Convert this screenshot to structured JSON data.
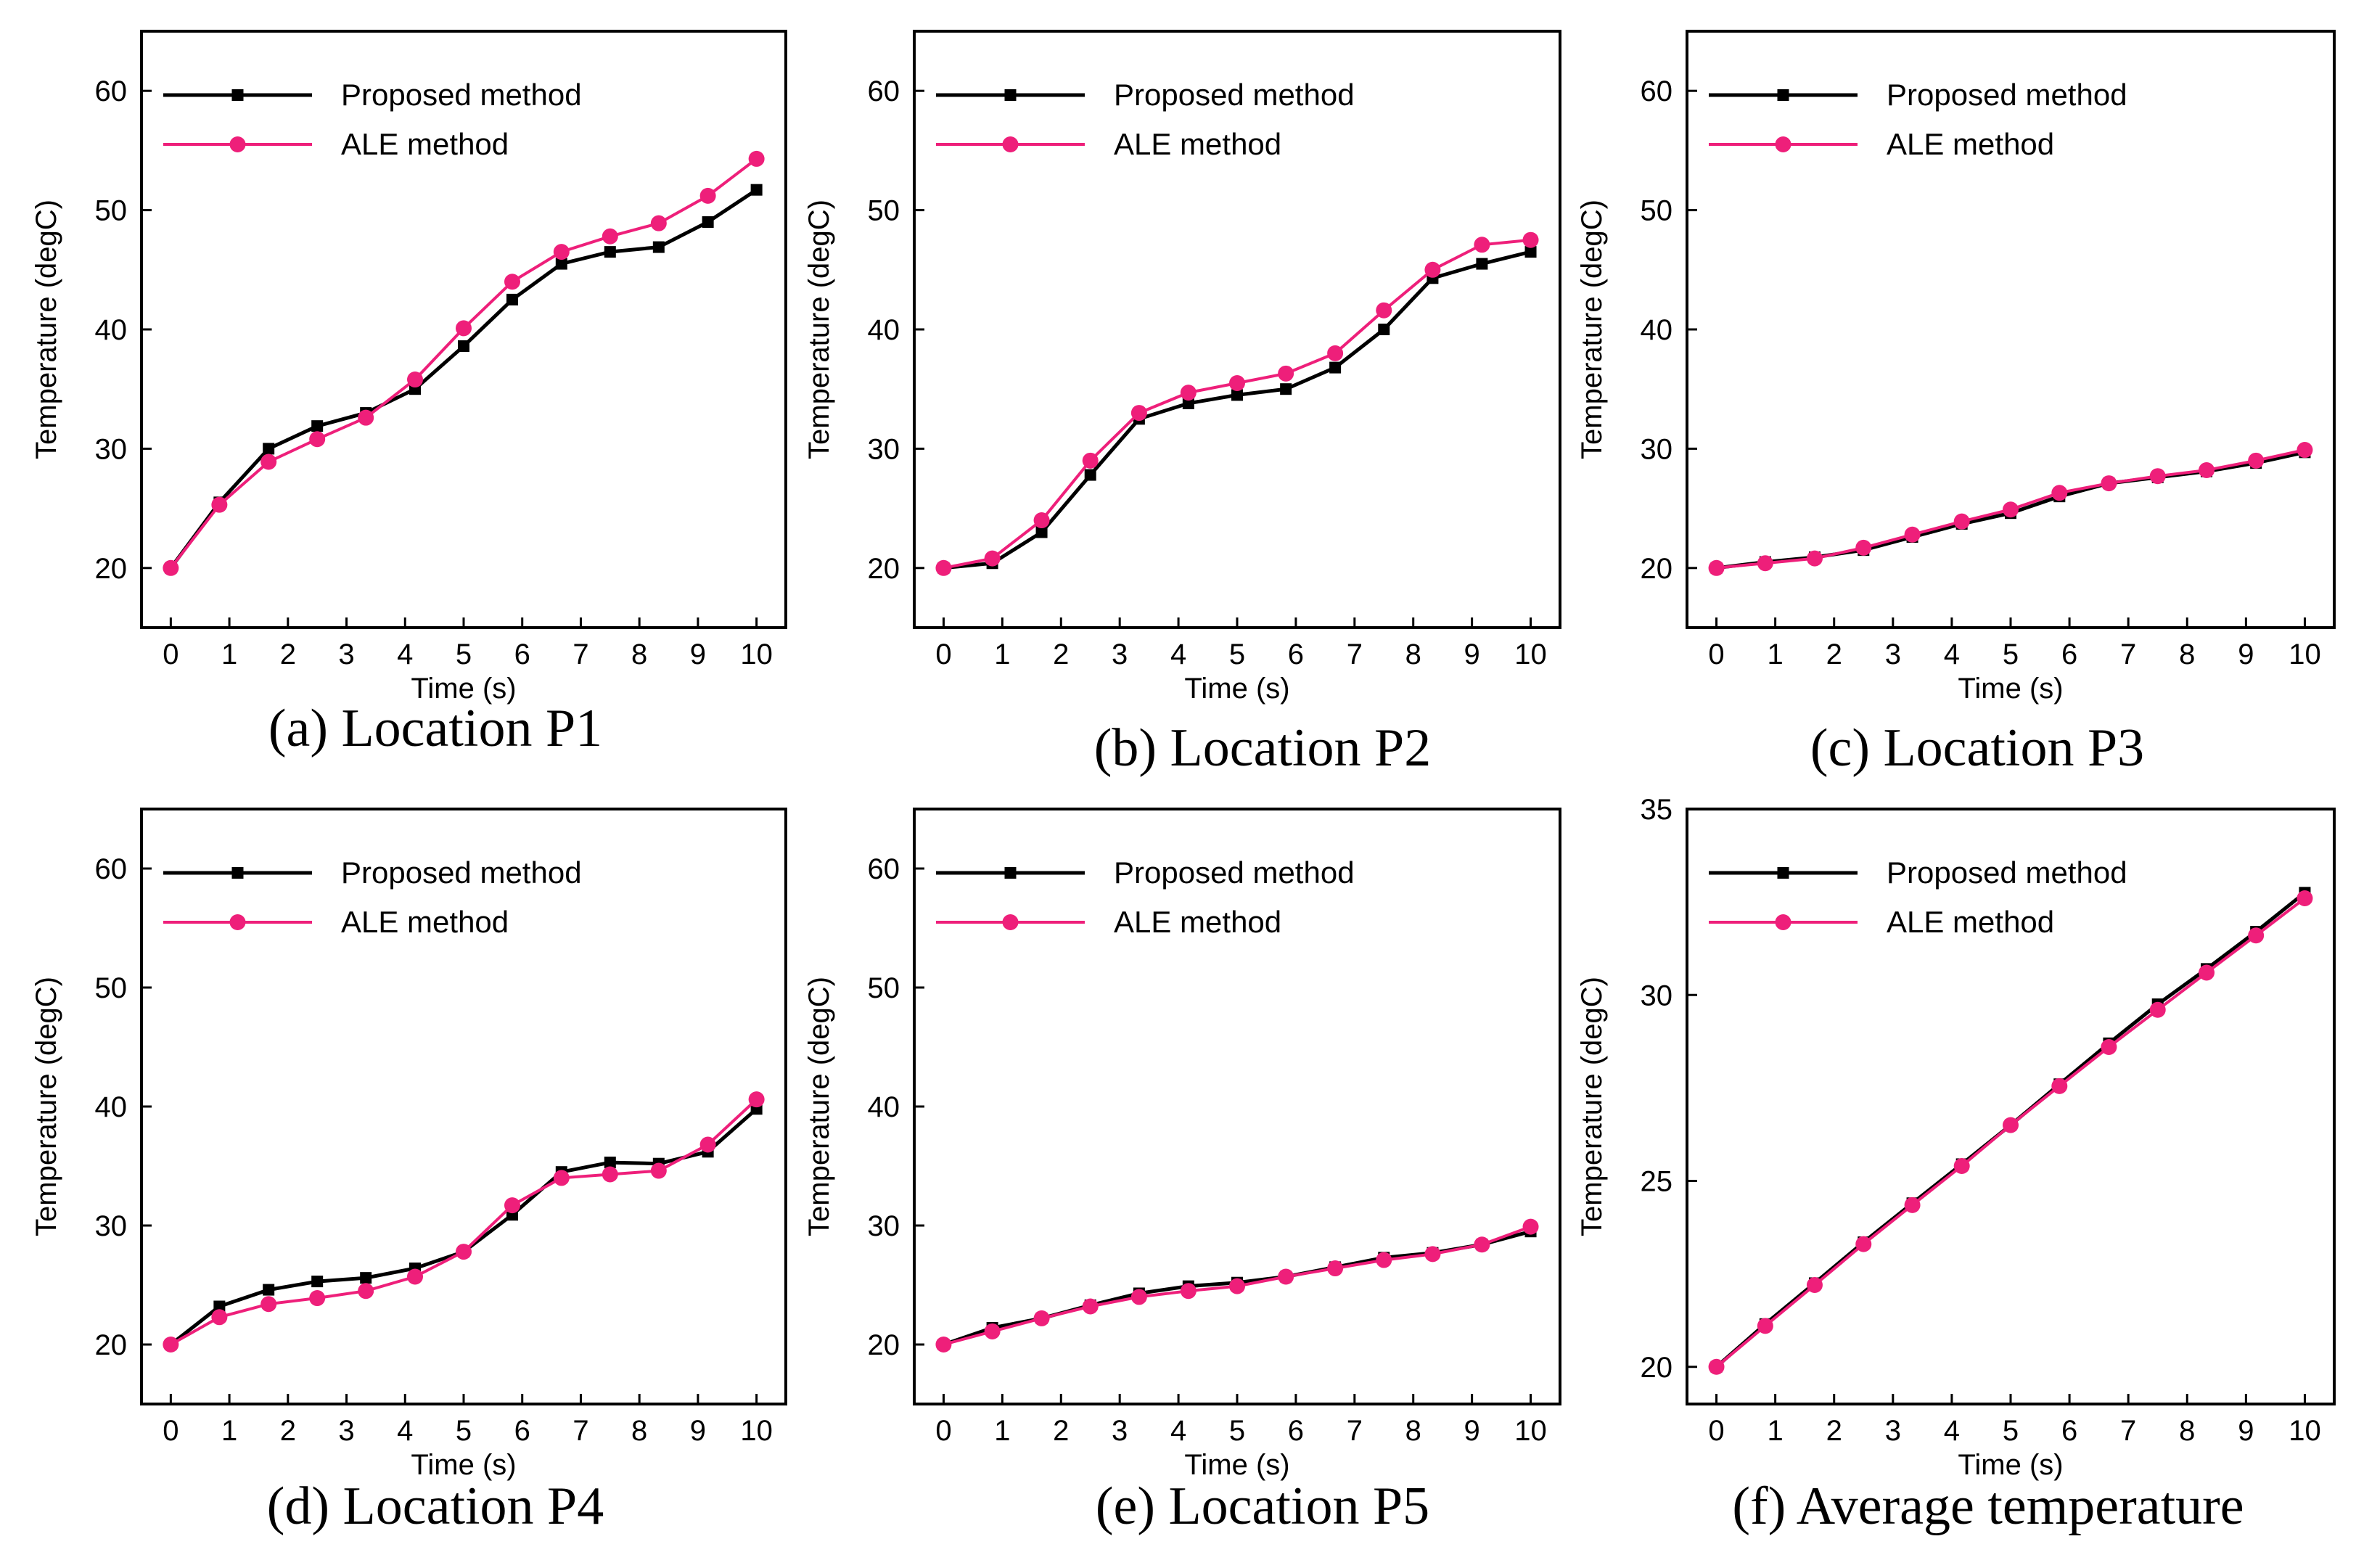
{
  "figure": {
    "colors": {
      "proposed": "#000000",
      "ale": "#ee1f7a",
      "axis": "#000000"
    }
  },
  "chart_data": [
    {
      "panel_id": "a",
      "type": "line",
      "caption": "(a) Location P1",
      "xlabel": "Time (s)",
      "ylabel": "Temperature (degC)",
      "xlim": [
        -0.5,
        10.5
      ],
      "ylim": [
        15,
        65
      ],
      "xticks": [
        0,
        1,
        2,
        3,
        4,
        5,
        6,
        7,
        8,
        9,
        10
      ],
      "yticks": [
        20,
        30,
        40,
        50,
        60
      ],
      "legend": "top-left",
      "series": [
        {
          "name": "Proposed method",
          "marker": "square",
          "color": "#000000",
          "x": [
            0,
            0.83,
            1.67,
            2.5,
            3.33,
            4.17,
            5,
            5.83,
            6.67,
            7.5,
            8.33,
            9.17,
            10
          ],
          "y": [
            20,
            25.5,
            30,
            31.9,
            33,
            35,
            38.6,
            42.5,
            45.5,
            46.5,
            46.9,
            49,
            51.7
          ]
        },
        {
          "name": "ALE method",
          "marker": "circle",
          "color": "#ee1f7a",
          "x": [
            0,
            0.83,
            1.67,
            2.5,
            3.33,
            4.17,
            5,
            5.83,
            6.67,
            7.5,
            8.33,
            9.17,
            10
          ],
          "y": [
            20,
            25.3,
            28.9,
            30.8,
            32.6,
            35.8,
            40.1,
            44,
            46.5,
            47.8,
            48.9,
            51.2,
            54.3
          ]
        }
      ]
    },
    {
      "panel_id": "b",
      "type": "line",
      "caption": "(b) Location P2",
      "xlabel": "Time (s)",
      "ylabel": "Temperature (degC)",
      "xlim": [
        -0.5,
        10.5
      ],
      "ylim": [
        15,
        65
      ],
      "xticks": [
        0,
        1,
        2,
        3,
        4,
        5,
        6,
        7,
        8,
        9,
        10
      ],
      "yticks": [
        20,
        30,
        40,
        50,
        60
      ],
      "legend": "top-left",
      "series": [
        {
          "name": "Proposed method",
          "marker": "square",
          "color": "#000000",
          "x": [
            0,
            0.83,
            1.67,
            2.5,
            3.33,
            4.17,
            5,
            5.83,
            6.67,
            7.5,
            8.33,
            9.17,
            10
          ],
          "y": [
            20,
            20.4,
            23,
            27.8,
            32.5,
            33.8,
            34.5,
            35,
            36.8,
            40,
            44.3,
            45.5,
            46.5
          ]
        },
        {
          "name": "ALE method",
          "marker": "circle",
          "color": "#ee1f7a",
          "x": [
            0,
            0.83,
            1.67,
            2.5,
            3.33,
            4.17,
            5,
            5.83,
            6.67,
            7.5,
            8.33,
            9.17,
            10
          ],
          "y": [
            20,
            20.8,
            24,
            29,
            33,
            34.7,
            35.5,
            36.3,
            38,
            41.6,
            45,
            47.1,
            47.5
          ]
        }
      ]
    },
    {
      "panel_id": "c",
      "type": "line",
      "caption": "(c) Location P3",
      "xlabel": "Time (s)",
      "ylabel": "Temperature (degC)",
      "xlim": [
        -0.5,
        10.5
      ],
      "ylim": [
        15,
        65
      ],
      "xticks": [
        0,
        1,
        2,
        3,
        4,
        5,
        6,
        7,
        8,
        9,
        10
      ],
      "yticks": [
        20,
        30,
        40,
        50,
        60
      ],
      "legend": "top-left",
      "series": [
        {
          "name": "Proposed method",
          "marker": "square",
          "color": "#000000",
          "x": [
            0,
            0.83,
            1.67,
            2.5,
            3.33,
            4.17,
            5,
            5.83,
            6.67,
            7.5,
            8.33,
            9.17,
            10
          ],
          "y": [
            20,
            20.5,
            20.9,
            21.5,
            22.6,
            23.7,
            24.6,
            26,
            27.1,
            27.6,
            28.1,
            28.8,
            29.7
          ]
        },
        {
          "name": "ALE method",
          "marker": "circle",
          "color": "#ee1f7a",
          "x": [
            0,
            0.83,
            1.67,
            2.5,
            3.33,
            4.17,
            5,
            5.83,
            6.67,
            7.5,
            8.33,
            9.17,
            10
          ],
          "y": [
            20,
            20.4,
            20.8,
            21.7,
            22.8,
            23.9,
            24.9,
            26.3,
            27.1,
            27.7,
            28.2,
            29,
            29.9
          ]
        }
      ]
    },
    {
      "panel_id": "d",
      "type": "line",
      "caption": "(d) Location P4",
      "xlabel": "Time (s)",
      "ylabel": "Temperature (degC)",
      "xlim": [
        -0.5,
        10.5
      ],
      "ylim": [
        15,
        65
      ],
      "xticks": [
        0,
        1,
        2,
        3,
        4,
        5,
        6,
        7,
        8,
        9,
        10
      ],
      "yticks": [
        20,
        30,
        40,
        50,
        60
      ],
      "legend": "top-left",
      "series": [
        {
          "name": "Proposed method",
          "marker": "square",
          "color": "#000000",
          "x": [
            0,
            0.83,
            1.67,
            2.5,
            3.33,
            4.17,
            5,
            5.83,
            6.67,
            7.5,
            8.33,
            9.17,
            10
          ],
          "y": [
            20,
            23.2,
            24.6,
            25.3,
            25.6,
            26.4,
            27.8,
            30.9,
            34.5,
            35.3,
            35.2,
            36.2,
            39.8
          ]
        },
        {
          "name": "ALE method",
          "marker": "circle",
          "color": "#ee1f7a",
          "x": [
            0,
            0.83,
            1.67,
            2.5,
            3.33,
            4.17,
            5,
            5.83,
            6.67,
            7.5,
            8.33,
            9.17,
            10
          ],
          "y": [
            20,
            22.3,
            23.4,
            23.9,
            24.5,
            25.7,
            27.8,
            31.7,
            34,
            34.3,
            34.6,
            36.8,
            40.6
          ]
        }
      ]
    },
    {
      "panel_id": "e",
      "type": "line",
      "caption": "(e) Location P5",
      "xlabel": "Time (s)",
      "ylabel": "Temperature (degC)",
      "xlim": [
        -0.5,
        10.5
      ],
      "ylim": [
        15,
        65
      ],
      "xticks": [
        0,
        1,
        2,
        3,
        4,
        5,
        6,
        7,
        8,
        9,
        10
      ],
      "yticks": [
        20,
        30,
        40,
        50,
        60
      ],
      "legend": "top-left",
      "series": [
        {
          "name": "Proposed method",
          "marker": "square",
          "color": "#000000",
          "x": [
            0,
            0.83,
            1.67,
            2.5,
            3.33,
            4.17,
            5,
            5.83,
            6.67,
            7.5,
            8.33,
            9.17,
            10
          ],
          "y": [
            20,
            21.4,
            22.2,
            23.3,
            24.3,
            24.9,
            25.2,
            25.7,
            26.5,
            27.3,
            27.7,
            28.4,
            29.5
          ]
        },
        {
          "name": "ALE method",
          "marker": "circle",
          "color": "#ee1f7a",
          "x": [
            0,
            0.83,
            1.67,
            2.5,
            3.33,
            4.17,
            5,
            5.83,
            6.67,
            7.5,
            8.33,
            9.17,
            10
          ],
          "y": [
            20,
            21.1,
            22.2,
            23.2,
            24,
            24.5,
            24.9,
            25.7,
            26.4,
            27.1,
            27.6,
            28.4,
            29.9
          ]
        }
      ]
    },
    {
      "panel_id": "f",
      "type": "line",
      "caption": "(f) Average temperature",
      "xlabel": "Time (s)",
      "ylabel": "Temperature (degC)",
      "xlim": [
        -0.5,
        10.5
      ],
      "ylim": [
        19,
        35
      ],
      "xticks": [
        0,
        1,
        2,
        3,
        4,
        5,
        6,
        7,
        8,
        9,
        10
      ],
      "yticks": [
        20,
        25,
        30,
        35
      ],
      "legend": "top-left",
      "series": [
        {
          "name": "Proposed method",
          "marker": "square",
          "color": "#000000",
          "x": [
            0,
            0.83,
            1.67,
            2.5,
            3.33,
            4.17,
            5,
            5.83,
            6.67,
            7.5,
            8.33,
            9.17,
            10
          ],
          "y": [
            20,
            21.15,
            22.25,
            23.35,
            24.4,
            25.45,
            26.5,
            27.6,
            28.7,
            29.75,
            30.7,
            31.7,
            32.75
          ]
        },
        {
          "name": "ALE method",
          "marker": "circle",
          "color": "#ee1f7a",
          "x": [
            0,
            0.83,
            1.67,
            2.5,
            3.33,
            4.17,
            5,
            5.83,
            6.67,
            7.5,
            8.33,
            9.17,
            10
          ],
          "y": [
            20,
            21.1,
            22.2,
            23.3,
            24.35,
            25.4,
            26.5,
            27.55,
            28.6,
            29.6,
            30.6,
            31.6,
            32.6
          ]
        }
      ]
    }
  ]
}
